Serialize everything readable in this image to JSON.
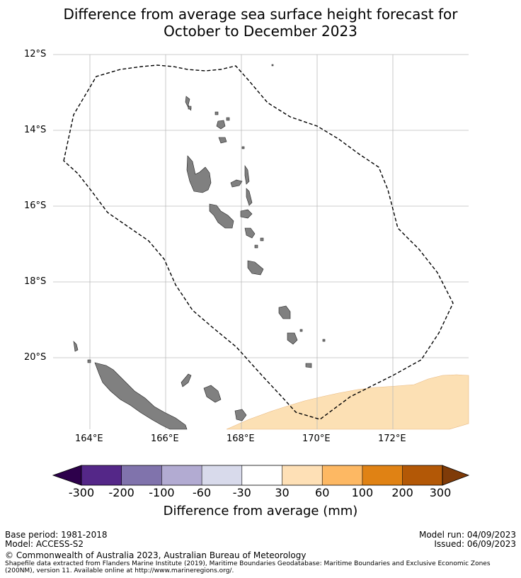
{
  "title": {
    "line1": "Difference from average sea surface height forecast for",
    "line2": "October to December 2023"
  },
  "map": {
    "lat_labels": [
      "12°S",
      "14°S",
      "16°S",
      "18°S",
      "20°S"
    ],
    "lon_labels": [
      "164°E",
      "166°E",
      "168°E",
      "170°E",
      "172°E"
    ],
    "land_color": "#808080",
    "anomaly_color": "#fce0b4",
    "boundary_style": "dashed"
  },
  "colorbar": {
    "ticks": [
      "-300",
      "-200",
      "-100",
      "-60",
      "-30",
      "30",
      "60",
      "100",
      "200",
      "300"
    ],
    "colors": [
      "#2d004b",
      "#542788",
      "#8073ac",
      "#b2abd2",
      "#d8daeb",
      "#ffffff",
      "#fee0b6",
      "#fdb863",
      "#e08214",
      "#b35806",
      "#7f3b08"
    ],
    "label": "Difference from average (mm)"
  },
  "footer": {
    "base_period": "Base period: 1981-2018",
    "model": "Model: ACCESS-S2",
    "model_run": "Model run: 04/09/2023",
    "issued": "Issued: 06/09/2023",
    "copyright": "© Commonwealth of Australia 2023, Australian Bureau of Meteorology",
    "shapefile_1": "Shapefile data extracted from Flanders Marine Institute (2019), Maritime Boundaries Geodatabase: Maritime Boundaries and Exclusive Economic Zones",
    "shapefile_2": "(200NM), version 11. Available online at http://www.marineregions.org/."
  }
}
